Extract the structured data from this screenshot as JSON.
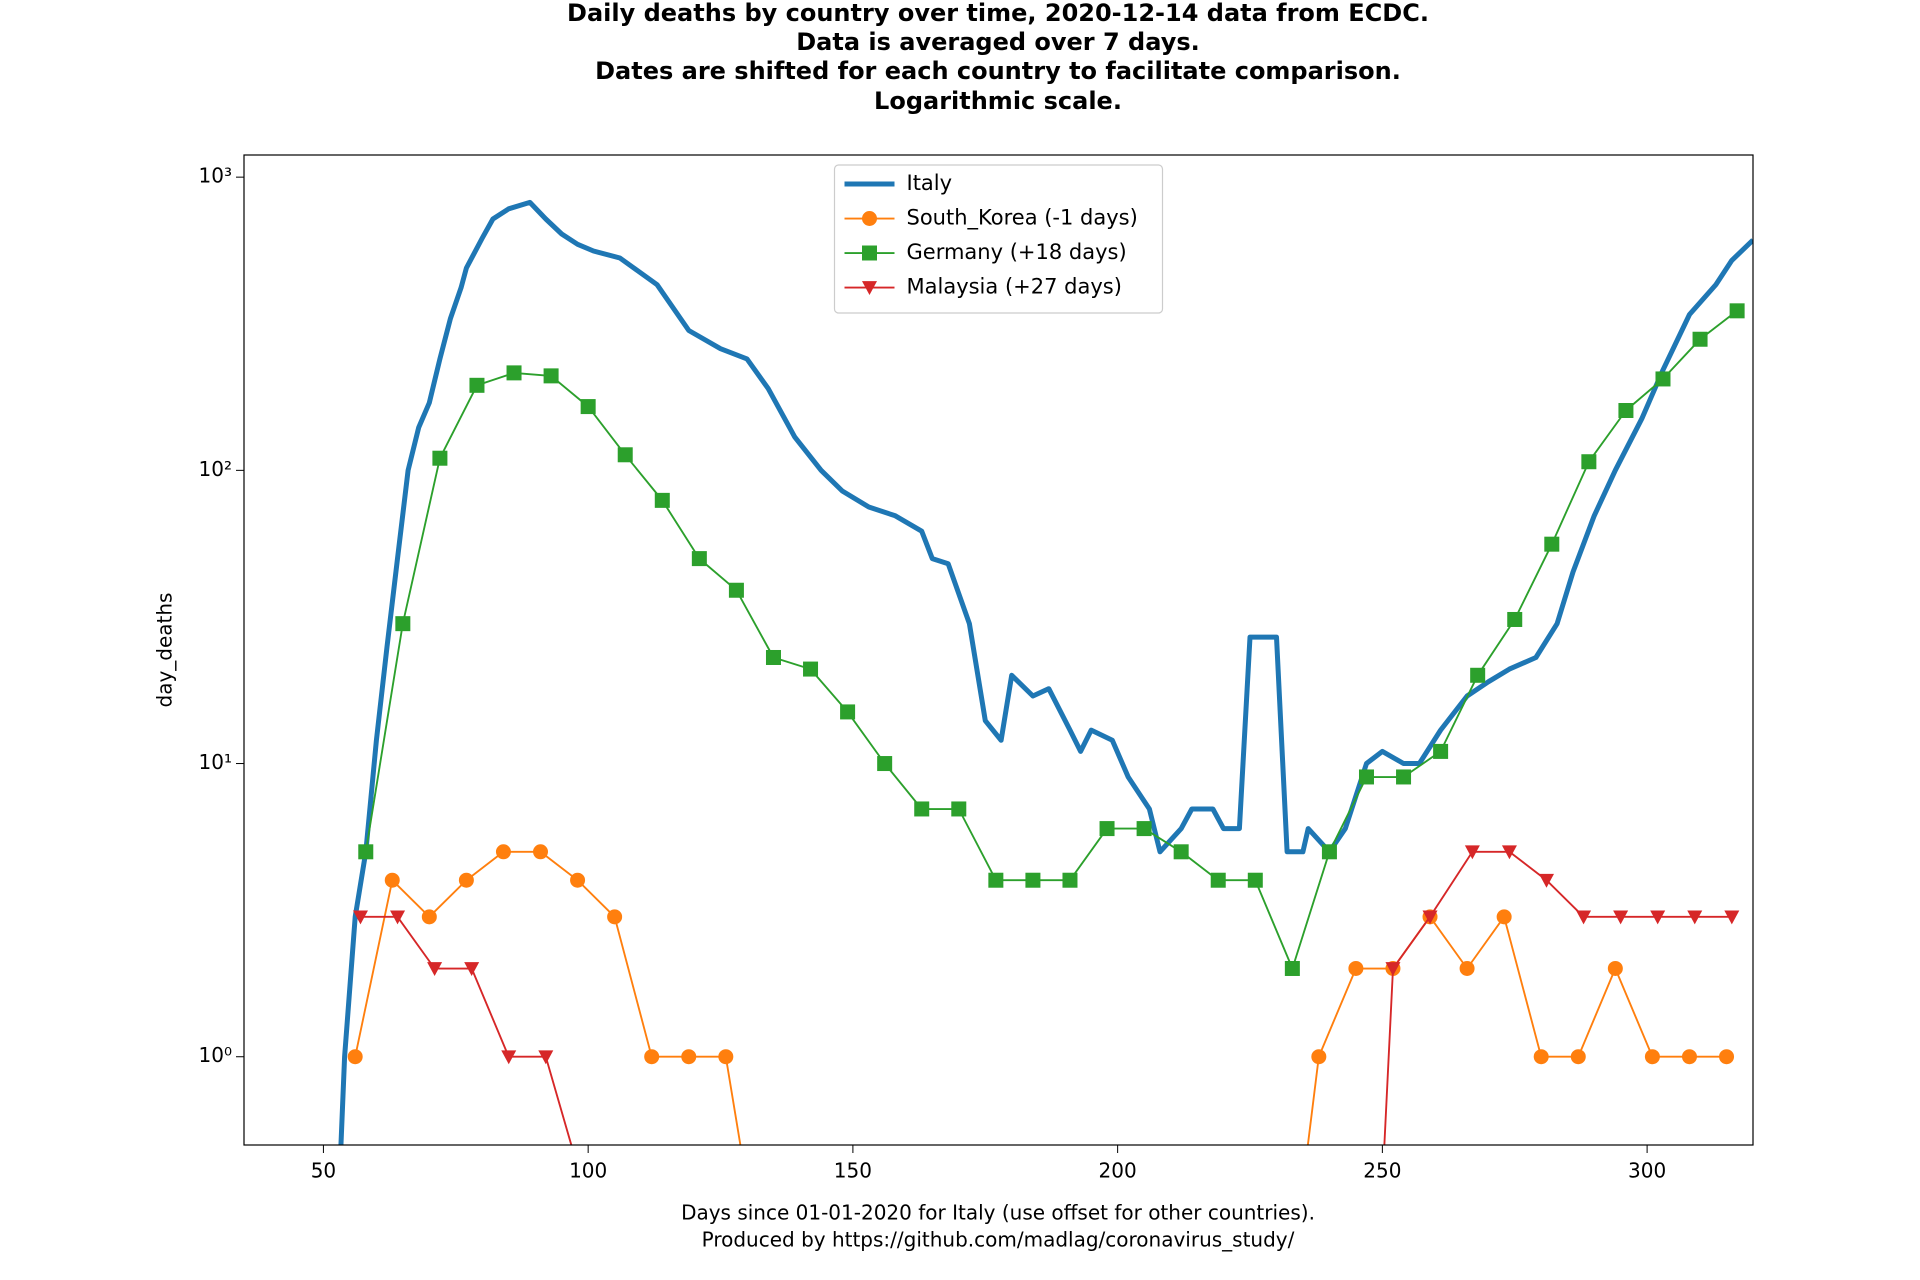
{
  "chart_data": {
    "type": "line",
    "title": [
      "Daily deaths by country over time, 2020-12-14 data from ECDC.",
      "Data is averaged over 7 days.",
      "Dates are shifted for each country to facilitate comparison.",
      "Logarithmic scale."
    ],
    "x_label": [
      "Days since 01-01-2020 for Italy (use offset for other countries).",
      "Produced by https://github.com/madlag/coronavirus_study/"
    ],
    "y_label": "day_deaths",
    "log_y": true,
    "legend": "upper center",
    "xlim": [
      35,
      320
    ],
    "xticks": [
      50,
      100,
      150,
      200,
      250,
      300
    ],
    "ylim": [
      0.5,
      1190
    ],
    "yticks": [
      {
        "value": 1,
        "label": "10⁰"
      },
      {
        "value": 10,
        "label": "10¹"
      },
      {
        "value": 100,
        "label": "10²"
      },
      {
        "value": 1000,
        "label": "10³"
      }
    ],
    "series": [
      {
        "name": "Italy",
        "color": "#1f77b4",
        "linewidth": 4,
        "x": [
          53,
          54,
          56,
          58,
          60,
          62,
          64,
          66,
          68,
          70,
          72,
          74,
          76,
          77,
          80,
          82,
          85,
          89,
          92,
          95,
          98,
          101,
          106,
          113,
          119,
          125,
          130,
          134,
          139,
          144,
          148,
          153,
          158,
          163,
          165,
          168,
          172,
          175,
          178,
          180,
          184,
          187,
          191,
          193,
          195,
          199,
          202,
          206,
          208,
          212,
          214,
          218,
          220,
          223,
          225,
          230,
          232,
          235,
          236,
          240,
          243,
          247,
          250,
          254,
          257,
          261,
          266,
          270,
          274,
          279,
          283,
          286,
          290,
          294,
          299,
          303,
          308,
          313,
          316,
          320
        ],
        "values": [
          0,
          1,
          3,
          5,
          12,
          25,
          50,
          100,
          140,
          170,
          240,
          330,
          420,
          490,
          620,
          720,
          780,
          820,
          720,
          640,
          590,
          560,
          530,
          430,
          300,
          260,
          240,
          190,
          130,
          100,
          85,
          75,
          70,
          62,
          50,
          48,
          30,
          14,
          12,
          20,
          17,
          18,
          13,
          11,
          13,
          12,
          9,
          7,
          5,
          6,
          7,
          7,
          6,
          6,
          27,
          27,
          5,
          5,
          6,
          5,
          6,
          10,
          11,
          10,
          10,
          13,
          17,
          19,
          21,
          23,
          30,
          45,
          70,
          100,
          150,
          220,
          340,
          430,
          520,
          610
        ]
      },
      {
        "name": "South_Korea (-1 days)",
        "color": "#ff7f0e",
        "linewidth": 1.5,
        "marker": "circle",
        "x": [
          56,
          63,
          70,
          77,
          84,
          91,
          98,
          105,
          112,
          119,
          126,
          130,
          235,
          238,
          245,
          252,
          259,
          266,
          273,
          280,
          287,
          294,
          301,
          308,
          315
        ],
        "values": [
          1,
          4,
          3,
          4,
          5,
          5,
          4,
          3,
          1,
          1,
          1,
          0,
          0,
          1,
          2,
          2,
          3,
          2,
          3,
          1,
          1,
          2,
          1,
          1,
          1
        ]
      },
      {
        "name": "Germany (+18 days)",
        "color": "#2ca02c",
        "linewidth": 1.5,
        "marker": "square",
        "x": [
          58,
          65,
          72,
          79,
          86,
          93,
          100,
          107,
          114,
          121,
          128,
          135,
          142,
          149,
          156,
          163,
          170,
          177,
          184,
          191,
          198,
          205,
          212,
          219,
          226,
          233,
          240,
          247,
          254,
          261,
          268,
          275,
          282,
          289,
          296,
          303,
          310,
          317
        ],
        "values": [
          5,
          30,
          110,
          195,
          215,
          210,
          165,
          113,
          79,
          50,
          39,
          23,
          21,
          15,
          10,
          7,
          7,
          4,
          4,
          4,
          6,
          6,
          5,
          4,
          4,
          2,
          5,
          9,
          9,
          11,
          20,
          31,
          56,
          107,
          160,
          205,
          280,
          350
        ]
      },
      {
        "name": "Malaysia (+27 days)",
        "color": "#d62728",
        "linewidth": 1.5,
        "marker": "triangle-down",
        "x": [
          57,
          64,
          71,
          78,
          85,
          92,
          99,
          250,
          252,
          259,
          267,
          274,
          281,
          288,
          295,
          302,
          309,
          316
        ],
        "values": [
          3,
          3,
          2,
          2,
          1,
          1,
          0,
          0,
          2,
          3,
          5,
          5,
          4,
          3,
          3,
          3,
          3,
          3
        ]
      }
    ]
  }
}
